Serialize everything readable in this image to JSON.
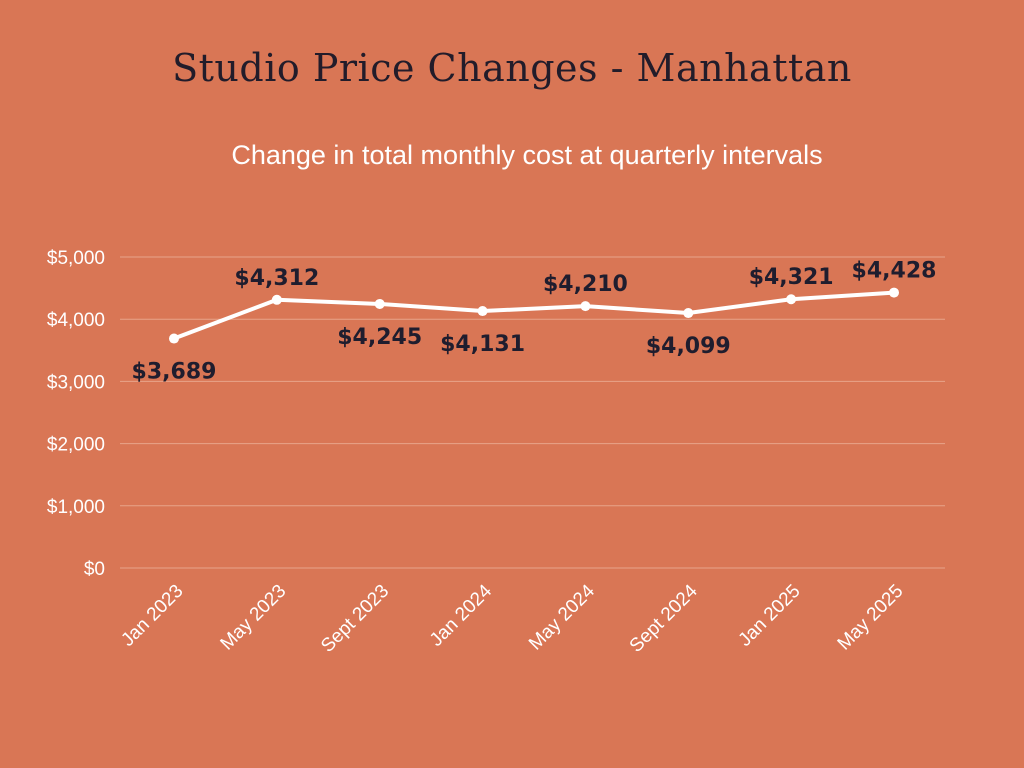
{
  "title": "Studio Price Changes - Manhattan",
  "subtitle": "Change in total monthly cost at quarterly intervals",
  "colors": {
    "background": "#d97655",
    "line": "#ffffff",
    "grid": "#e8a48a",
    "label": "#1f1d2e"
  },
  "chart_data": {
    "type": "line",
    "title": "Studio Price Changes - Manhattan",
    "subtitle": "Change in total monthly cost at quarterly intervals",
    "categories": [
      "Jan 2023",
      "May 2023",
      "Sept 2023",
      "Jan 2024",
      "May 2024",
      "Sept 2024",
      "Jan 2025",
      "May 2025"
    ],
    "series": [
      {
        "values": [
          3689,
          4312,
          4245,
          4131,
          4210,
          4099,
          4321,
          4428
        ],
        "data_labels": [
          "$3,689",
          "$4,312",
          "$4,245",
          "$4,131",
          "$4,210",
          "$4,099",
          "$4,321",
          "$4,428"
        ],
        "label_positions": [
          "below",
          "above",
          "below",
          "below",
          "above",
          "below",
          "above",
          "above"
        ]
      }
    ],
    "y_ticks": [
      0,
      1000,
      2000,
      3000,
      4000,
      5000
    ],
    "y_tick_labels": [
      "$0",
      "$1,000",
      "$2,000",
      "$3,000",
      "$4,000",
      "$5,000"
    ],
    "ylim": [
      0,
      5000
    ],
    "grid": true,
    "legend": "none"
  }
}
